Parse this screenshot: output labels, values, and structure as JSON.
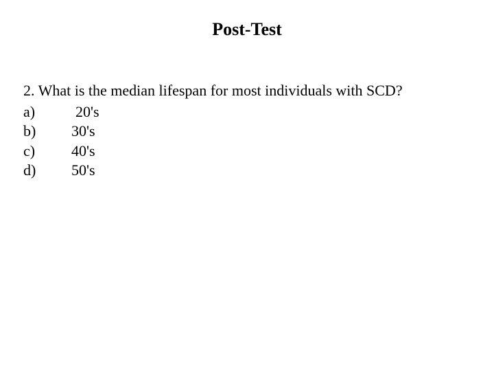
{
  "title": "Post-Test",
  "question": {
    "number": "2.",
    "text": "What is the median lifespan for most individuals with SCD?"
  },
  "options": [
    {
      "label": "a)",
      "text": "20's",
      "pad": true
    },
    {
      "label": "b)",
      "text": "30's",
      "pad": false
    },
    {
      "label": "c)",
      "text": "40's",
      "pad": false
    },
    {
      "label": "d)",
      "text": "50's",
      "pad": false
    }
  ],
  "colors": {
    "background": "#ffffff",
    "text": "#000000"
  },
  "typography": {
    "title_fontsize": 26,
    "body_fontsize": 22,
    "font_family": "Georgia, serif"
  }
}
